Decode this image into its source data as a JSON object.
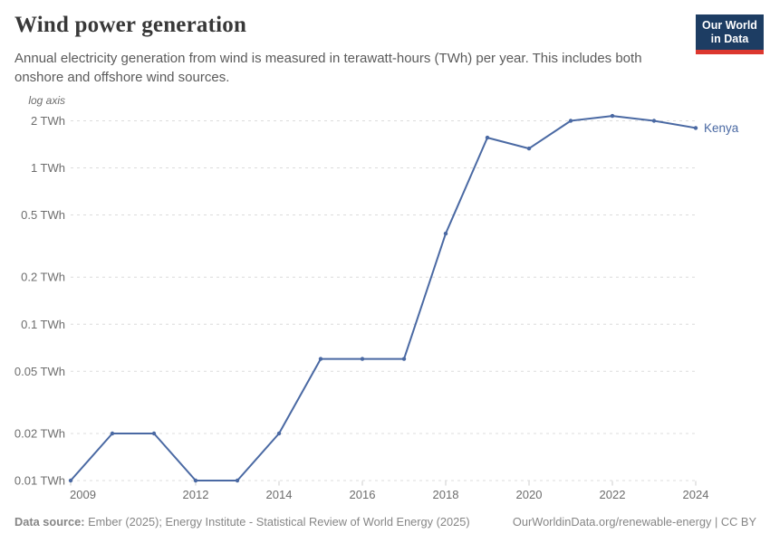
{
  "header": {
    "title": "Wind power generation",
    "subtitle": "Annual electricity generation from wind is measured in terawatt-hours (TWh) per year. This includes both onshore and offshore wind sources.",
    "logo": {
      "line1": "Our World",
      "line2": "in Data"
    }
  },
  "chart_data": {
    "type": "line",
    "title": "Wind power generation",
    "unit": "TWh",
    "y_scale": "log",
    "axis_note": "log axis",
    "x": [
      2009,
      2010,
      2011,
      2012,
      2013,
      2014,
      2015,
      2016,
      2017,
      2018,
      2019,
      2020,
      2021,
      2022,
      2023,
      2024
    ],
    "series": [
      {
        "name": "Kenya",
        "color": "#4a69a3",
        "values": [
          0.01,
          0.02,
          0.02,
          0.01,
          0.01,
          0.02,
          0.06,
          0.06,
          0.06,
          0.38,
          1.56,
          1.33,
          2.0,
          2.15,
          2.0,
          1.8
        ]
      }
    ],
    "x_ticks": [
      2009,
      2012,
      2014,
      2016,
      2018,
      2020,
      2022,
      2024
    ],
    "y_ticks": [
      {
        "value": 2,
        "label": "2 TWh"
      },
      {
        "value": 1,
        "label": "1 TWh"
      },
      {
        "value": 0.5,
        "label": "0.5 TWh"
      },
      {
        "value": 0.2,
        "label": "0.2 TWh"
      },
      {
        "value": 0.1,
        "label": "0.1 TWh"
      },
      {
        "value": 0.05,
        "label": "0.05 TWh"
      },
      {
        "value": 0.02,
        "label": "0.02 TWh"
      },
      {
        "value": 0.01,
        "label": "0.01 TWh"
      }
    ],
    "ylim": [
      0.01,
      2.4
    ],
    "grid": "horizontal-dashed",
    "legend_position": "end-of-line"
  },
  "footer": {
    "source_label": "Data source:",
    "source_text": "Ember (2025); Energy Institute - Statistical Review of World Energy (2025)",
    "attribution": "OurWorldinData.org/renewable-energy | CC BY"
  },
  "colors": {
    "line": "#4a69a3",
    "grid": "#dcdcdc",
    "tick": "#cccccc",
    "axis_text": "#6d6d6d",
    "logo_bg": "#1d3d63",
    "logo_accent": "#dc372f"
  }
}
